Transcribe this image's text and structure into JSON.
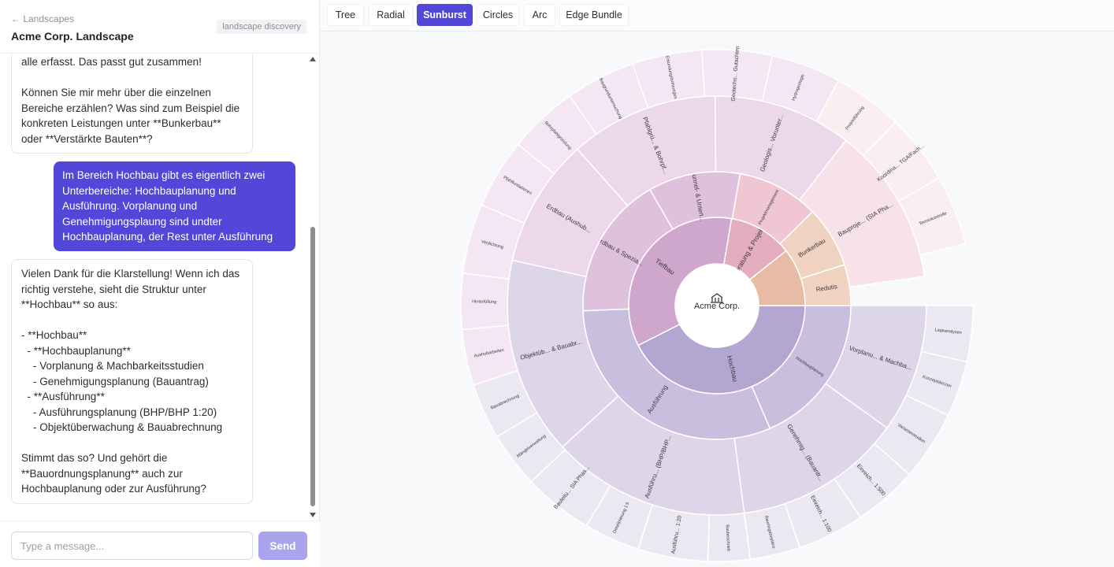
{
  "sidebar": {
    "back_link": "← Landscapes",
    "title": "Acme Corp. Landscape",
    "mode_badge": "landscape discovery"
  },
  "chat": {
    "messages": [
      {
        "role": "bot",
        "text": "alle erfasst. Das passt gut zusammen!\n\nKönnen Sie mir mehr über die einzelnen Bereiche erzählen? Was sind zum Beispiel die konkreten Leistungen unter **Bunkerbau** oder **Verstärkte Bauten**?"
      },
      {
        "role": "user",
        "text": "Im Bereich Hochbau gibt es eigentlich zwei Unterbereiche: Hochbauplanung und Ausführung. Vorplanung und Genehmigungsplaung sind undter Hochbauplanung, der Rest unter Ausführung"
      },
      {
        "role": "bot",
        "text": "Vielen Dank für die Klarstellung! Wenn ich das richtig verstehe, sieht die Struktur unter **Hochbau** so aus:\n\n- **Hochbau**\n  - **Hochbauplanung**\n    - Vorplanung & Machbarkeitsstudien\n    - Genehmigungsplanung (Bauantrag)\n  - **Ausführung**\n    - Ausführungsplanung (BHP/BHP 1:20)\n    - Objektüberwachung & Bauabrechnung\n\nStimmt das so? Und gehört die **Bauordnungsplanung** auch zur Hochbauplanung oder zur Ausführung?"
      }
    ]
  },
  "composer": {
    "placeholder": "Type a message...",
    "send_label": "Send"
  },
  "tabs": [
    {
      "label": "Tree",
      "active": false
    },
    {
      "label": "Radial",
      "active": false
    },
    {
      "label": "Sunburst",
      "active": true
    },
    {
      "label": "Circles",
      "active": false
    },
    {
      "label": "Arc",
      "active": false
    },
    {
      "label": "Edge Bundle",
      "active": false
    }
  ],
  "colors": {
    "accent": "#5247d8",
    "hochbau": "#b3a6d0",
    "tiefbau": "#cfa7cc",
    "beratung": "#e3adbd",
    "bunkerbau": "#e8bca4"
  },
  "sunburst": {
    "root": {
      "label": "Acme Corp.",
      "icon": "building-icon"
    },
    "ring1": [
      {
        "label": "Hochbau",
        "value": 40,
        "color": "#b3a6d0"
      },
      {
        "label": "Tiefbau",
        "value": 33,
        "color": "#cfa7cc"
      },
      {
        "label": "Beratung & Projek...",
        "value": 11,
        "color": "#e3adbd"
      },
      {
        "label": "",
        "value": 10,
        "color": "#e8bca4"
      }
    ],
    "ring2": [
      {
        "label": "Hochbauplanung",
        "value": 15,
        "color": "#c8bede",
        "small": true
      },
      {
        "label": "Ausführung",
        "value": 25,
        "color": "#c8bede"
      },
      {
        "label": "Erdbau & Spezia...",
        "value": 14,
        "color": "#e0c1dd"
      },
      {
        "label": "Tunnel- & Untert...",
        "value": 9,
        "color": "#e0c1dd"
      },
      {
        "label": "Projektmanagement",
        "value": 8,
        "color": "#efc6d1",
        "small": true
      },
      {
        "label": "Bunkerbau",
        "value": 6,
        "color": "#f0d2c0"
      },
      {
        "label": "Redutis",
        "value": 4,
        "color": "#f0d2c0"
      }
    ],
    "ring3": [
      {
        "label": "Vorplanu... & Machba...",
        "value": 6.5,
        "color": "#ddd5e8"
      },
      {
        "label": "Genehmig... (Bauantr...",
        "value": 8.5,
        "color": "#ddd5e8"
      },
      {
        "label": "Ausführu... (BHP/BHP...",
        "value": 10,
        "color": "#ddd5e8"
      },
      {
        "label": "Objektüb... & Bauabr...",
        "value": 10,
        "color": "#ddd5e8"
      },
      {
        "label": "Erdbau (Aushub...",
        "value": 6.5,
        "color": "#ecd8ea"
      },
      {
        "label": "Pfahlgrü... & Bohrpf...",
        "value": 7.5,
        "color": "#ecd8ea"
      },
      {
        "label": "Geologis... Vorunter...",
        "value": 7,
        "color": "#ecd8ea"
      },
      {
        "label": "Bauproje... (SIA Pha...",
        "value": 8,
        "color": "#f6e2e8"
      }
    ],
    "ring4": [
      {
        "label": "Lageanalysen",
        "value": 2,
        "color": "#ece8f2",
        "small": true
      },
      {
        "label": "Konzeptskizzen",
        "value": 2,
        "color": "#ece8f2",
        "small": true
      },
      {
        "label": "Variantenstudien",
        "value": 2.5,
        "color": "#ece8f2",
        "small": true
      },
      {
        "label": "Einreich... 1:500",
        "value": 2.3,
        "color": "#ece8f2"
      },
      {
        "label": "Einreich... 1:100",
        "value": 2.4,
        "color": "#ece8f2"
      },
      {
        "label": "Baueingabepläne",
        "value": 1.8,
        "color": "#ece8f2",
        "small": true
      },
      {
        "label": "Baubeschrieb",
        "value": 1.5,
        "color": "#ece8f2",
        "small": true
      },
      {
        "label": "Ausführu... 1:20",
        "value": 2.5,
        "color": "#ece8f2"
      },
      {
        "label": "Detailplanung 1:5",
        "value": 2,
        "color": "#ece8f2",
        "small": true
      },
      {
        "label": "Bauleitu... SIA Phas...",
        "value": 2.5,
        "color": "#ece8f2"
      },
      {
        "label": "Mängelverwaltung",
        "value": 2,
        "color": "#ece8f2",
        "small": true
      },
      {
        "label": "Bauabrechnung",
        "value": 2,
        "color": "#ece8f2",
        "small": true
      },
      {
        "label": "Aushubarbeiten",
        "value": 2,
        "color": "#f4e7f3",
        "small": true
      },
      {
        "label": "Hinterfüllung",
        "value": 2,
        "color": "#f4e7f3",
        "small": true
      },
      {
        "label": "Verdichtung",
        "value": 2.5,
        "color": "#f4e7f3",
        "small": true
      },
      {
        "label": "Pfahlfundationen",
        "value": 2.5,
        "color": "#f4e7f3",
        "small": true
      },
      {
        "label": "Bohrpfahlgründung",
        "value": 2.5,
        "color": "#f4e7f3",
        "small": true
      },
      {
        "label": "Baugrunduntersuchung",
        "value": 2.5,
        "color": "#f4e7f3",
        "small": true
      },
      {
        "label": "Erkundungsbohrungen",
        "value": 2.5,
        "color": "#f4e7f3",
        "small": true
      },
      {
        "label": "Geotechn... Gutachten",
        "value": 2.5,
        "color": "#f4e7f3"
      },
      {
        "label": "Hydrogeologie",
        "value": 2.5,
        "color": "#f4e7f3",
        "small": true
      },
      {
        "label": "Projektführung",
        "value": 2.5,
        "color": "#faeef1",
        "small": true
      },
      {
        "label": "Koordina... TGA/Fach...",
        "value": 2.5,
        "color": "#faeef1"
      },
      {
        "label": "Terminkontrolle",
        "value": 2.5,
        "color": "#faeef1",
        "small": true
      }
    ]
  }
}
